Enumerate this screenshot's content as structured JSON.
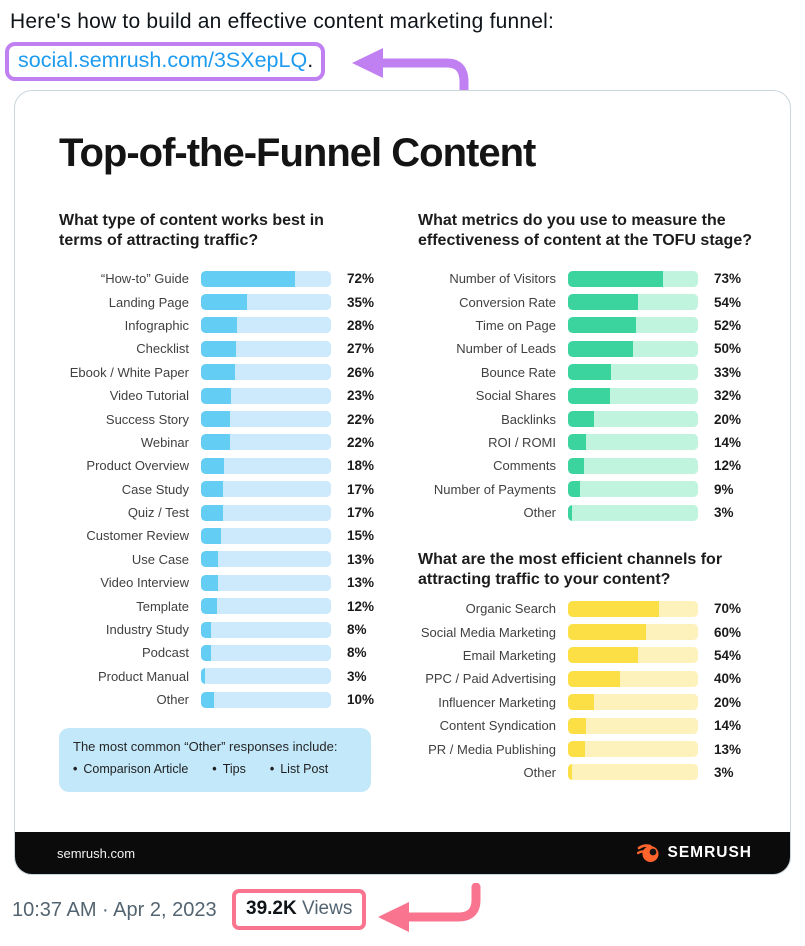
{
  "post": {
    "text": "Here's how to build an effective content marketing funnel:",
    "link_text": "social.semrush.com/3SXepLQ",
    "link_suffix": ".",
    "timestamp": "10:37 AM · Apr 2, 2023",
    "views_count": "39.2K",
    "views_label": "Views",
    "accent_purple": "#c080f2",
    "accent_pink": "#f9758f",
    "link_color": "#1d9bf0"
  },
  "infographic": {
    "title": "Top-of-the-Funnel Content",
    "callout": {
      "title": "The most common “Other” responses include:",
      "items": [
        "Comparison Article",
        "Tips",
        "List Post"
      ]
    },
    "footer": {
      "site": "semrush.com",
      "brand": "SEMRUSH",
      "brand_color": "#ff642d"
    }
  },
  "chart_data": [
    {
      "type": "bar",
      "orientation": "horizontal",
      "title": "What type of content works best in terms of attracting traffic?",
      "unit": "%",
      "xlim": [
        0,
        100
      ],
      "bar_color": "#63cdf4",
      "track_color": "#cdeafc",
      "categories": [
        "“How-to” Guide",
        "Landing Page",
        "Infographic",
        "Checklist",
        "Ebook / White Paper",
        "Video Tutorial",
        "Success Story",
        "Webinar",
        "Product Overview",
        "Case Study",
        "Quiz / Test",
        "Customer Review",
        "Use Case",
        "Video Interview",
        "Template",
        "Industry Study",
        "Podcast",
        "Product Manual",
        "Other"
      ],
      "values": [
        72,
        35,
        28,
        27,
        26,
        23,
        22,
        22,
        18,
        17,
        17,
        15,
        13,
        13,
        12,
        8,
        8,
        3,
        10
      ]
    },
    {
      "type": "bar",
      "orientation": "horizontal",
      "title": "What metrics do you use to measure the effectiveness of content at the TOFU stage?",
      "unit": "%",
      "xlim": [
        0,
        100
      ],
      "bar_color": "#3bd39e",
      "track_color": "#c0f4de",
      "categories": [
        "Number of Visitors",
        "Conversion Rate",
        "Time on Page",
        "Number of Leads",
        "Bounce Rate",
        "Social Shares",
        "Backlinks",
        "ROI / ROMI",
        "Comments",
        "Number of Payments",
        "Other"
      ],
      "values": [
        73,
        54,
        52,
        50,
        33,
        32,
        20,
        14,
        12,
        9,
        3
      ]
    },
    {
      "type": "bar",
      "orientation": "horizontal",
      "title": "What are the most efficient channels for attracting traffic to your content?",
      "unit": "%",
      "xlim": [
        0,
        100
      ],
      "bar_color": "#fcdf44",
      "track_color": "#fdf2bb",
      "categories": [
        "Organic Search",
        "Social Media Marketing",
        "Email Marketing",
        "PPC / Paid Advertising",
        "Influencer Marketing",
        "Content Syndication",
        "PR / Media Publishing",
        "Other"
      ],
      "values": [
        70,
        60,
        54,
        40,
        20,
        14,
        13,
        3
      ]
    }
  ]
}
